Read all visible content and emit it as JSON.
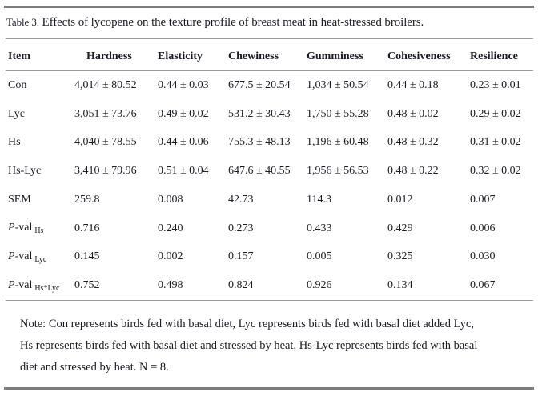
{
  "table": {
    "title_prefix": "Table 3.",
    "title": " Effects of lycopene on the texture profile of breast meat in heat-stressed broilers.",
    "columns": [
      "Item",
      "Hardness",
      "Elasticity",
      "Chewiness",
      "Gumminess",
      "Cohesiveness",
      "Resilience"
    ],
    "rows": [
      {
        "label": "Con",
        "cells": [
          "4,014 ± 80.52",
          "0.44 ± 0.03",
          "677.5 ± 20.54",
          "1,034 ± 50.54",
          "0.44 ± 0.18",
          "0.23 ± 0.01"
        ]
      },
      {
        "label": "Lyc",
        "cells": [
          "3,051 ± 73.76",
          "0.49 ± 0.02",
          "531.2 ± 30.43",
          "1,750 ± 55.28",
          "0.48 ± 0.02",
          "0.29 ± 0.02"
        ]
      },
      {
        "label": "Hs",
        "cells": [
          "4,040 ± 78.55",
          "0.44 ± 0.06",
          "755.3 ± 48.13",
          "1,196 ± 60.48",
          "0.48 ± 0.32",
          "0.31 ± 0.02"
        ]
      },
      {
        "label": "Hs-Lyc",
        "cells": [
          "3,410 ± 79.96",
          "0.51 ± 0.04",
          "647.6 ± 40.55",
          "1,956 ± 56.53",
          "0.48 ± 0.22",
          "0.32 ± 0.02"
        ]
      },
      {
        "label": "SEM",
        "cells": [
          "259.8",
          "0.008",
          "42.73",
          "114.3",
          "0.012",
          "0.007"
        ]
      },
      {
        "label_p": "P",
        "label_val": "-val",
        "label_sub": "Hs",
        "cells": [
          "0.716",
          "0.240",
          "0.273",
          "0.433",
          "0.429",
          "0.006"
        ]
      },
      {
        "label_p": "P",
        "label_val": "-val",
        "label_sub": "Lyc",
        "cells": [
          "0.145",
          "0.002",
          "0.157",
          "0.005",
          "0.325",
          "0.030"
        ]
      },
      {
        "label_p": "P",
        "label_val": "-val",
        "label_sub": "Hs*Lyc",
        "cells": [
          "0.752",
          "0.498",
          "0.824",
          "0.926",
          "0.134",
          "0.067"
        ]
      }
    ],
    "note_lines": [
      "Note: Con represents birds fed with basal diet, Lyc represents birds fed with basal diet added Lyc,",
      "Hs represents birds fed with basal diet and stressed by heat, Hs-Lyc represents birds fed with basal",
      "diet and stressed by heat. N = 8."
    ]
  }
}
